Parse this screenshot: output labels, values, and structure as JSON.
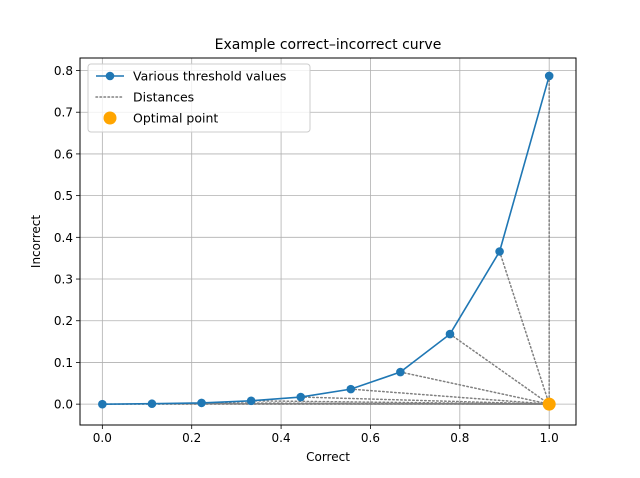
{
  "chart_data": {
    "type": "line",
    "title": "Example correct–incorrect curve",
    "xlabel": "Correct",
    "ylabel": "Incorrect",
    "xlim": [
      -0.05,
      1.06
    ],
    "ylim": [
      -0.05,
      0.83
    ],
    "xticks": [
      0.0,
      0.2,
      0.4,
      0.6,
      0.8,
      1.0
    ],
    "xtick_labels": [
      "0.0",
      "0.2",
      "0.4",
      "0.6",
      "0.8",
      "1.0"
    ],
    "yticks": [
      0.0,
      0.1,
      0.2,
      0.3,
      0.4,
      0.5,
      0.6,
      0.7,
      0.8
    ],
    "ytick_labels": [
      "0.0",
      "0.1",
      "0.2",
      "0.3",
      "0.4",
      "0.5",
      "0.6",
      "0.7",
      "0.8"
    ],
    "grid": true,
    "legend_position": "top-left",
    "series": [
      {
        "name": "Various threshold values",
        "style": "line-with-markers",
        "color": "#1f77b4",
        "x": [
          0.0,
          0.111,
          0.222,
          0.333,
          0.444,
          0.556,
          0.667,
          0.778,
          0.889,
          1.0
        ],
        "y": [
          0.0,
          0.001,
          0.003,
          0.008,
          0.017,
          0.036,
          0.077,
          0.168,
          0.366,
          0.787
        ]
      },
      {
        "name": "Distances",
        "style": "dotted",
        "color": "#808080",
        "target": [
          1.0,
          0.0
        ]
      },
      {
        "name": "Optimal point",
        "style": "marker",
        "color": "#ffa500",
        "x": [
          1.0
        ],
        "y": [
          0.0
        ]
      }
    ]
  }
}
